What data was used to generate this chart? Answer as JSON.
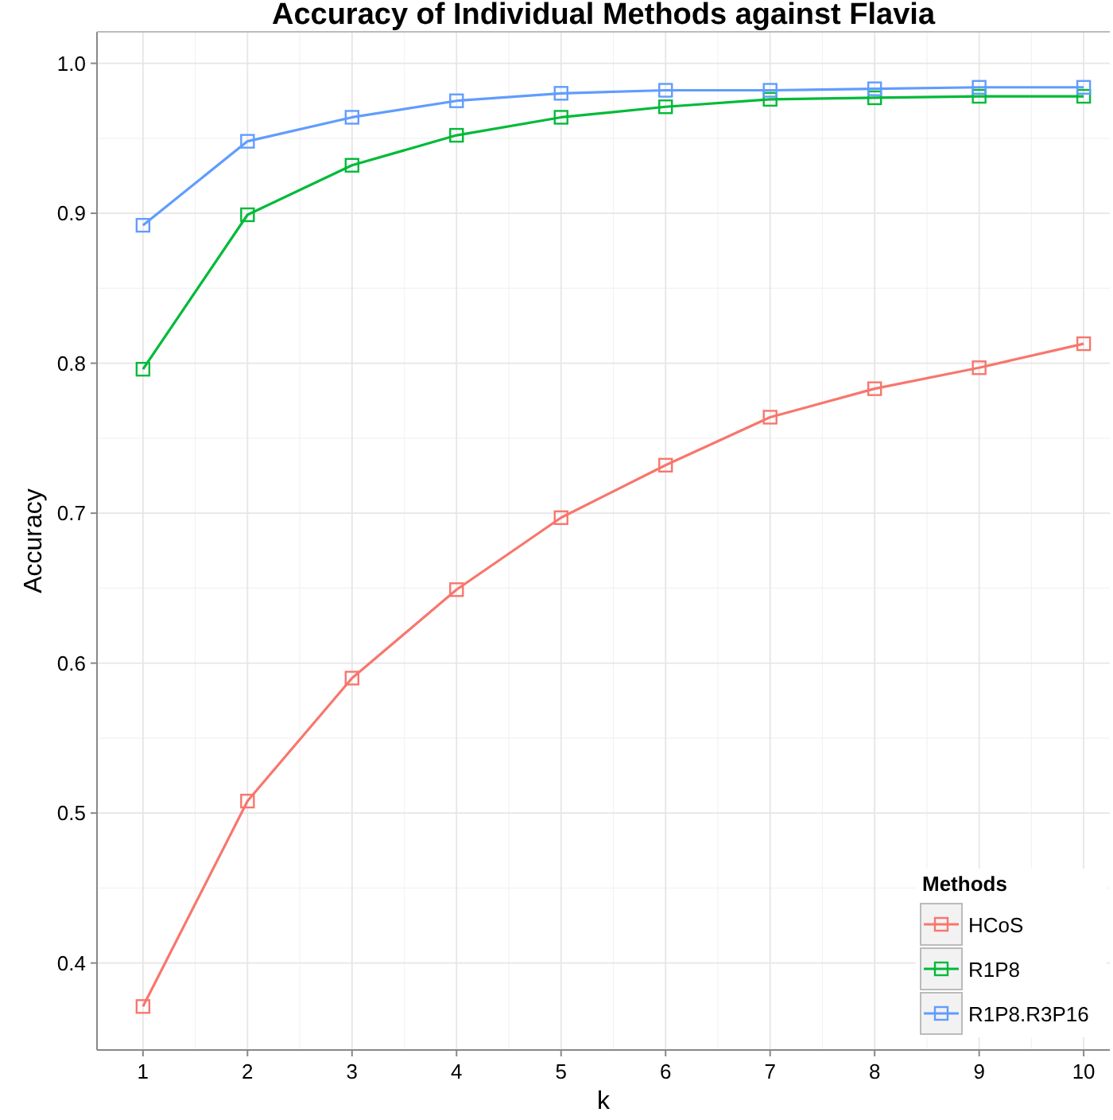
{
  "chart_data": {
    "type": "line",
    "title": "Accuracy of Individual Methods against Flavia",
    "xlabel": "k",
    "ylabel": "Accuracy",
    "legend_title": "Methods",
    "x": [
      1,
      2,
      3,
      4,
      5,
      6,
      7,
      8,
      9,
      10
    ],
    "series": [
      {
        "name": "HCoS",
        "color": "#f8766d",
        "values": [
          0.371,
          0.508,
          0.59,
          0.649,
          0.697,
          0.732,
          0.764,
          0.783,
          0.797,
          0.813
        ]
      },
      {
        "name": "R1P8",
        "color": "#00ba38",
        "values": [
          0.796,
          0.899,
          0.932,
          0.952,
          0.964,
          0.971,
          0.976,
          0.977,
          0.978,
          0.978
        ]
      },
      {
        "name": "R1P8.R3P16",
        "color": "#619cff",
        "values": [
          0.892,
          0.948,
          0.964,
          0.975,
          0.98,
          0.982,
          0.982,
          0.983,
          0.984,
          0.984
        ]
      }
    ],
    "xlim": [
      0.56,
      10.25
    ],
    "ylim": [
      0.342,
      1.021
    ],
    "xticks": [
      1,
      2,
      3,
      4,
      5,
      6,
      7,
      8,
      9,
      10
    ],
    "yticks": [
      0.4,
      0.5,
      0.6,
      0.7,
      0.8,
      0.9,
      {
        "value": 1.0,
        "label": "1.0"
      }
    ],
    "grid": true,
    "legend": "bottom right",
    "marker": "square",
    "line_style": "solid"
  }
}
